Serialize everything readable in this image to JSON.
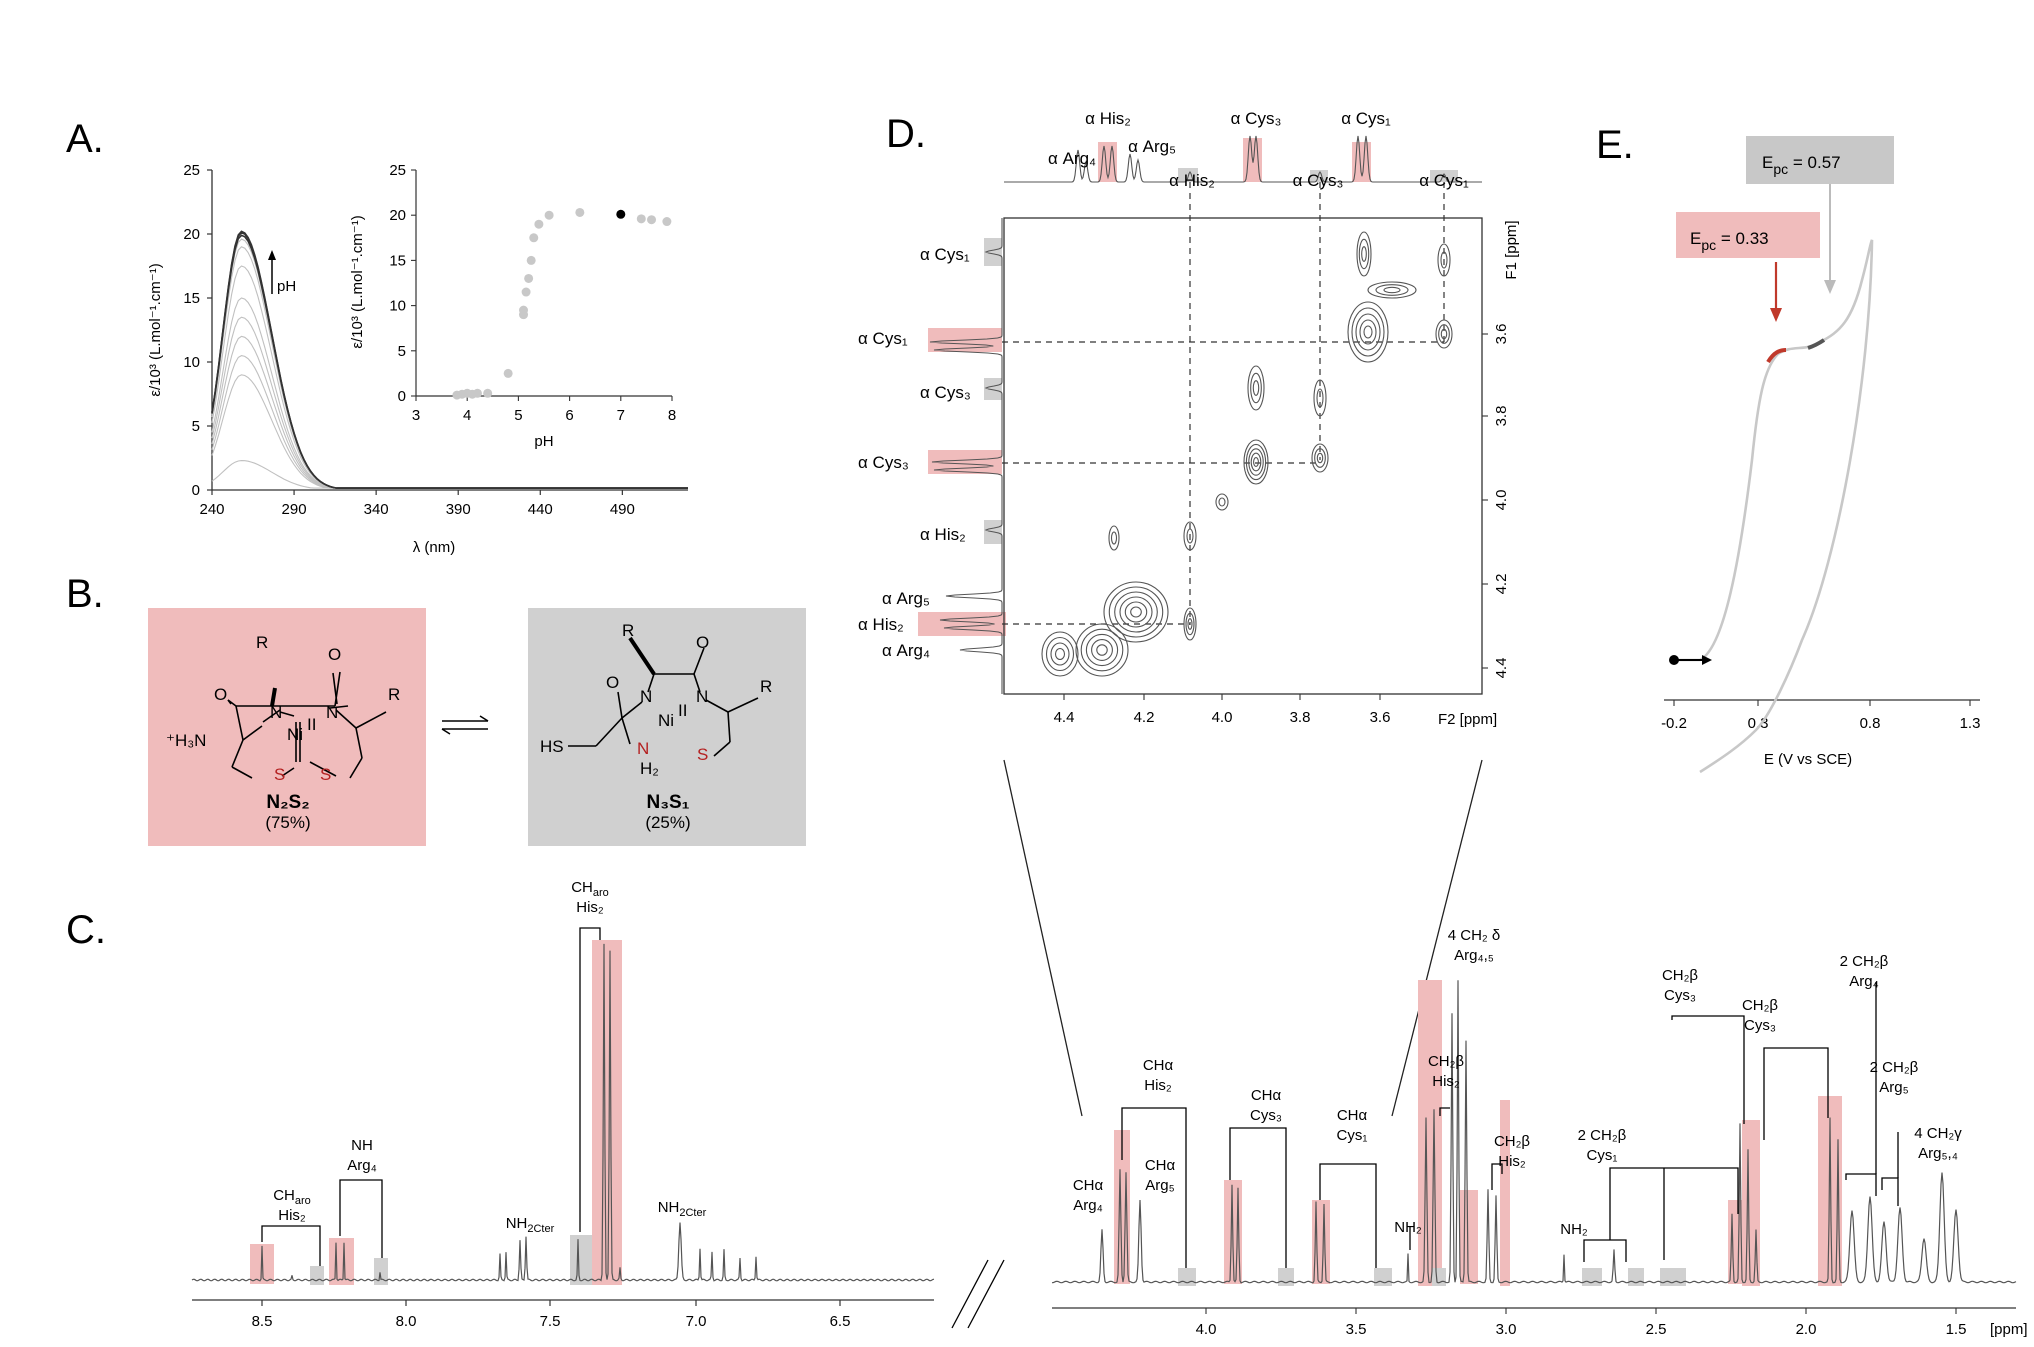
{
  "panels": {
    "a": "A.",
    "b": "B.",
    "c": "C.",
    "d": "D.",
    "e": "E."
  },
  "colors": {
    "red": "#f0bcbc",
    "grey": "#d0d0d0",
    "darkred": "#c0392b",
    "line": "#555555"
  },
  "panel_a": {
    "ylabel": "ε/10³ (L.mol⁻¹.cm⁻¹)",
    "xlabel": "λ (nm)",
    "yticks": [
      "25",
      "20",
      "15",
      "10",
      "5",
      "0"
    ],
    "xticks": [
      "240",
      "290",
      "340",
      "390",
      "440",
      "490"
    ],
    "arrow_label": "pH",
    "inset_ylabel": "ε/10³ (L.mol⁻¹.cm⁻¹)",
    "inset_xlabel": "pH",
    "inset_yticks": [
      "25",
      "20",
      "15",
      "10",
      "5",
      "0"
    ],
    "inset_xticks": [
      "3",
      "4",
      "5",
      "6",
      "7",
      "8"
    ]
  },
  "chart_data": [
    {
      "type": "line",
      "xlabel": "λ (nm)",
      "ylabel": "ε/10³ (L.mol⁻¹.cm⁻¹)",
      "xlim": [
        240,
        530
      ],
      "ylim": [
        0,
        25
      ],
      "series_peak_values": [
        2.3,
        9.0,
        10.5,
        12.0,
        13.5,
        15.0,
        17.5,
        19.0,
        19.6,
        19.9,
        20.1,
        20.2
      ],
      "peak_x": 258
    },
    {
      "type": "scatter",
      "xlabel": "pH",
      "ylabel": "ε/10³ (L.mol⁻¹.cm⁻¹)",
      "xlim": [
        3,
        8
      ],
      "ylim": [
        0,
        25
      ],
      "x": [
        3.8,
        3.9,
        4.0,
        4.1,
        4.2,
        4.4,
        4.8,
        5.1,
        5.1,
        5.15,
        5.2,
        5.25,
        5.3,
        5.4,
        5.6,
        6.2,
        7.0,
        7.4,
        7.6,
        7.9
      ],
      "y": [
        0.1,
        0.2,
        0.3,
        0.2,
        0.3,
        0.3,
        2.5,
        9.0,
        9.5,
        11.5,
        13.0,
        15.0,
        17.5,
        19.0,
        20.0,
        20.3,
        20.1,
        19.6,
        19.5,
        19.3
      ],
      "highlight_index": 16
    }
  ],
  "panel_b": {
    "left_name": "N₂S₂",
    "left_pct": "(75%)",
    "right_name": "N₃S₁",
    "right_pct": "(25%)",
    "R": "R",
    "O": "O",
    "N": "N",
    "S": "S",
    "Ni": "Ni",
    "Ni_ox": "II",
    "H3N": "⁺H₃N",
    "HS": "HS",
    "H2": "H₂"
  },
  "panel_c": {
    "labels": {
      "charo": "CH",
      "charo_sub": "aro",
      "his2": "His₂",
      "nh": "NH",
      "arg4": "Arg₄",
      "nh2cter": "NH",
      "nh2cter_sub": "2Cter",
      "charo_top": "CH",
      "charo_top_sub": "aro",
      "his2_top": "His₂",
      "nh2cter2": "NH",
      "nh2cter2_sub": "2Cter"
    },
    "xticks": [
      "8.5",
      "8.0",
      "7.5",
      "7.0",
      "6.5"
    ]
  },
  "panel_d": {
    "top_labels": [
      "α His₂",
      "α Arg₄",
      "α Arg₅",
      "α His₂",
      "α Cys₃",
      "α Cys₃",
      "α Cys₁",
      "α Cys₁"
    ],
    "left_labels": [
      "α Cys₁",
      "α Cys₁",
      "α Cys₃",
      "α Cys₃",
      "α His₂",
      "α Arg₅",
      "α His₂",
      "α Arg₄"
    ],
    "xticks": [
      "4.4",
      "4.2",
      "4.0",
      "3.8",
      "3.6"
    ],
    "xunit": "F2 [ppm]",
    "yticks": [
      "3.6",
      "3.8",
      "4.0",
      "4.2",
      "4.4"
    ],
    "yunit": "F1 [ppm]"
  },
  "panel_e": {
    "epc_grey": "E",
    "epc_grey_val": " = 0.57",
    "epc_red": "E",
    "epc_red_val": " = 0.33",
    "pc": "pc",
    "xticks": [
      "-0.2",
      "0.3",
      "0.8",
      "1.3"
    ],
    "xlabel": "E (V vs SCE)"
  },
  "panel_c2": {
    "labels": [
      {
        "t1": "CHα",
        "t2": "Arg₄"
      },
      {
        "t1": "CHα",
        "t2": "His₂"
      },
      {
        "t1": "CHα",
        "t2": "Arg₅"
      },
      {
        "t1": "CHα",
        "t2": "Cys₃"
      },
      {
        "t1": "CHα",
        "t2": "Cys₁"
      },
      {
        "t1": "NH₂",
        "t2": ""
      },
      {
        "t1": "CH₂β",
        "t2": "His₂"
      },
      {
        "t1": "4 CH₂ δ",
        "t2": "Arg₄,₅"
      },
      {
        "t1": "CH₂β",
        "t2": "His₂"
      },
      {
        "t1": "NH₂",
        "t2": ""
      },
      {
        "t1": "2 CH₂β",
        "t2": "Cys₁"
      },
      {
        "t1": "CH₂β",
        "t2": "Cys₃"
      },
      {
        "t1": "CH₂β",
        "t2": "Cys₃"
      },
      {
        "t1": "2 CH₂β",
        "t2": "Arg₄"
      },
      {
        "t1": "2 CH₂β",
        "t2": "Arg₅"
      },
      {
        "t1": "4 CH₂γ",
        "t2": "Arg₅,₄"
      }
    ],
    "xticks": [
      "4.0",
      "3.5",
      "3.0",
      "2.5",
      "2.0",
      "1.5"
    ],
    "xunit": "[ppm]"
  }
}
